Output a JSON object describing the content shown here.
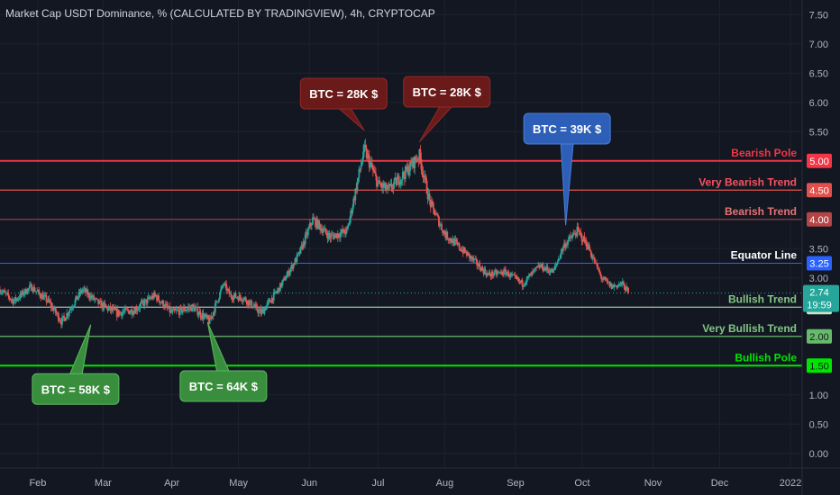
{
  "chart_data": {
    "type": "candlestick",
    "title": "Market Cap USDT Dominance, % (CALCULATED BY TRADINGVIEW), 4h, CRYPTOCAP",
    "ylim": [
      -0.25,
      7.75
    ],
    "y_ticks": [
      0.0,
      0.5,
      1.0,
      1.5,
      2.0,
      2.5,
      3.0,
      3.5,
      4.0,
      4.5,
      5.0,
      5.5,
      6.0,
      6.5,
      7.0,
      7.5
    ],
    "y_tick_labels": [
      "0.00",
      "0.50",
      "1.00",
      "1.50",
      "2.00",
      "2.50",
      "3.00",
      "3.50",
      "4.00",
      "4.50",
      "5.00",
      "5.50",
      "6.00",
      "6.50",
      "7.00",
      "7.50"
    ],
    "x_labels": [
      "Feb",
      "Mar",
      "Apr",
      "May",
      "Jun",
      "Jul",
      "Aug",
      "Sep",
      "Oct",
      "Nov",
      "Dec",
      "2022"
    ],
    "x_positions": [
      1.05,
      2.0,
      3.0,
      3.97,
      5.0,
      6.0,
      6.97,
      8.0,
      8.97,
      10.0,
      10.97,
      12.0
    ],
    "x_range": [
      0.5,
      12.17
    ],
    "up_color": "#26a69a",
    "down_color": "#ef5350",
    "price_path": [
      [
        0.5,
        2.8
      ],
      [
        0.7,
        2.6
      ],
      [
        0.95,
        2.85
      ],
      [
        1.2,
        2.6
      ],
      [
        1.4,
        2.25
      ],
      [
        1.7,
        2.8
      ],
      [
        1.95,
        2.55
      ],
      [
        2.2,
        2.4
      ],
      [
        2.45,
        2.45
      ],
      [
        2.75,
        2.7
      ],
      [
        3.0,
        2.4
      ],
      [
        3.3,
        2.5
      ],
      [
        3.55,
        2.25
      ],
      [
        3.75,
        2.9
      ],
      [
        3.85,
        2.7
      ],
      [
        4.05,
        2.65
      ],
      [
        4.3,
        2.4
      ],
      [
        4.55,
        2.8
      ],
      [
        4.85,
        3.4
      ],
      [
        5.05,
        4.0
      ],
      [
        5.3,
        3.7
      ],
      [
        5.55,
        3.8
      ],
      [
        5.8,
        5.2
      ],
      [
        6.0,
        4.6
      ],
      [
        6.15,
        4.5
      ],
      [
        6.4,
        4.8
      ],
      [
        6.6,
        5.1
      ],
      [
        6.75,
        4.3
      ],
      [
        6.97,
        3.75
      ],
      [
        7.3,
        3.4
      ],
      [
        7.6,
        3.05
      ],
      [
        7.85,
        3.1
      ],
      [
        8.1,
        2.9
      ],
      [
        8.35,
        3.2
      ],
      [
        8.55,
        3.1
      ],
      [
        8.7,
        3.55
      ],
      [
        8.9,
        3.8
      ],
      [
        9.05,
        3.55
      ],
      [
        9.25,
        3.0
      ],
      [
        9.4,
        2.85
      ],
      [
        9.55,
        2.9
      ],
      [
        9.65,
        2.74
      ]
    ],
    "levels": [
      {
        "label": "Bearish Pole",
        "value": 5.0,
        "tag": "5.00",
        "color": "#f23645",
        "width": 2,
        "text_color": "#f23645",
        "tag_text_color": "#ffffff"
      },
      {
        "label": "Very Bearish Trend",
        "value": 4.5,
        "tag": "4.50",
        "color": "#e0504c",
        "width": 1.3,
        "text_color": "#f7525f",
        "tag_text_color": "#ffffff"
      },
      {
        "label": "Bearish Trend",
        "value": 4.0,
        "tag": "4.00",
        "color": "#b34546",
        "width": 1,
        "text_color": "#e57373",
        "tag_text_color": "#ffffff"
      },
      {
        "label": "Equator Line",
        "value": 3.25,
        "tag": "3.25",
        "color": "#2962ff",
        "width": 1,
        "text_color": "#ffffff",
        "tag_text_color": "#ffffff"
      },
      {
        "label": "Bullish Trend",
        "value": 2.5,
        "tag": "2.50",
        "color": "#c8e6c9",
        "width": 1,
        "text_color": "#81c784",
        "tag_text_color": "#131722"
      },
      {
        "label": "Very Bullish Trend",
        "value": 2.0,
        "tag": "2.00",
        "color": "#66bb6a",
        "width": 1.3,
        "text_color": "#81c784",
        "tag_text_color": "#131722"
      },
      {
        "label": "Bullish Pole",
        "value": 1.5,
        "tag": "1.50",
        "color": "#00e600",
        "width": 2,
        "text_color": "#00e600",
        "tag_text_color": "#131722"
      }
    ],
    "current_price": {
      "value": 2.74,
      "label": "2.74",
      "countdown": "19:59",
      "color": "#26a69a"
    },
    "annotations": [
      {
        "text": "BTC = 28K $",
        "x": 5.8,
        "y": 5.52,
        "box_x": 5.5,
        "box_y": 6.15,
        "color": "#6b1a1a",
        "border": "#8e2a2a"
      },
      {
        "text": "BTC = 28K $",
        "x": 6.6,
        "y": 5.32,
        "box_x": 7.0,
        "box_y": 6.18,
        "color": "#6b1a1a",
        "border": "#8e2a2a"
      },
      {
        "text": "BTC = 39K $",
        "x": 8.73,
        "y": 3.9,
        "box_x": 8.75,
        "box_y": 5.55,
        "color": "#2d5fb8",
        "border": "#4a7ed8"
      },
      {
        "text": "BTC = 58K $",
        "x": 1.82,
        "y": 2.2,
        "box_x": 1.6,
        "box_y": 1.1,
        "color": "#388e3c",
        "border": "#5cb860"
      },
      {
        "text": "BTC = 64K $",
        "x": 3.52,
        "y": 2.24,
        "box_x": 3.75,
        "box_y": 1.15,
        "color": "#388e3c",
        "border": "#5cb860"
      }
    ]
  }
}
